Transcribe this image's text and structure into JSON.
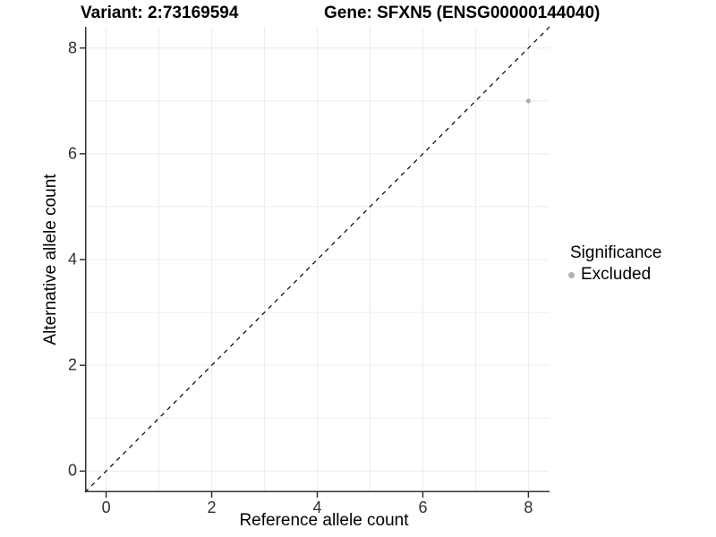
{
  "chart_data": {
    "type": "scatter",
    "titles": [
      "Variant: 2:73169594",
      "Gene: SFXN5 (ENSG00000144040)"
    ],
    "xlabel": "Reference allele count",
    "ylabel": "Alternative allele count",
    "xlim": [
      -0.4,
      8.4
    ],
    "ylim": [
      -0.4,
      8.4
    ],
    "x_ticks": [
      0,
      2,
      4,
      6,
      8
    ],
    "y_ticks": [
      0,
      2,
      4,
      6,
      8
    ],
    "grid_step": 1,
    "grid_on": true,
    "identity_line": {
      "slope": 1,
      "intercept": 0,
      "style": "dashed",
      "color": "#000000"
    },
    "series": [
      {
        "name": "Excluded",
        "color": "#b0b0b0",
        "point_radius": 2.6,
        "points": [
          {
            "x": 8,
            "y": 7
          }
        ]
      }
    ],
    "legend": {
      "title": "Significance",
      "position": "right",
      "entries": [
        {
          "label": "Excluded",
          "color": "#b0b0b0"
        }
      ]
    }
  },
  "colors": {
    "grid": "#ebebeb",
    "axis_line": "#333333",
    "tick_mark": "#333333",
    "tick_text": "#303030"
  }
}
